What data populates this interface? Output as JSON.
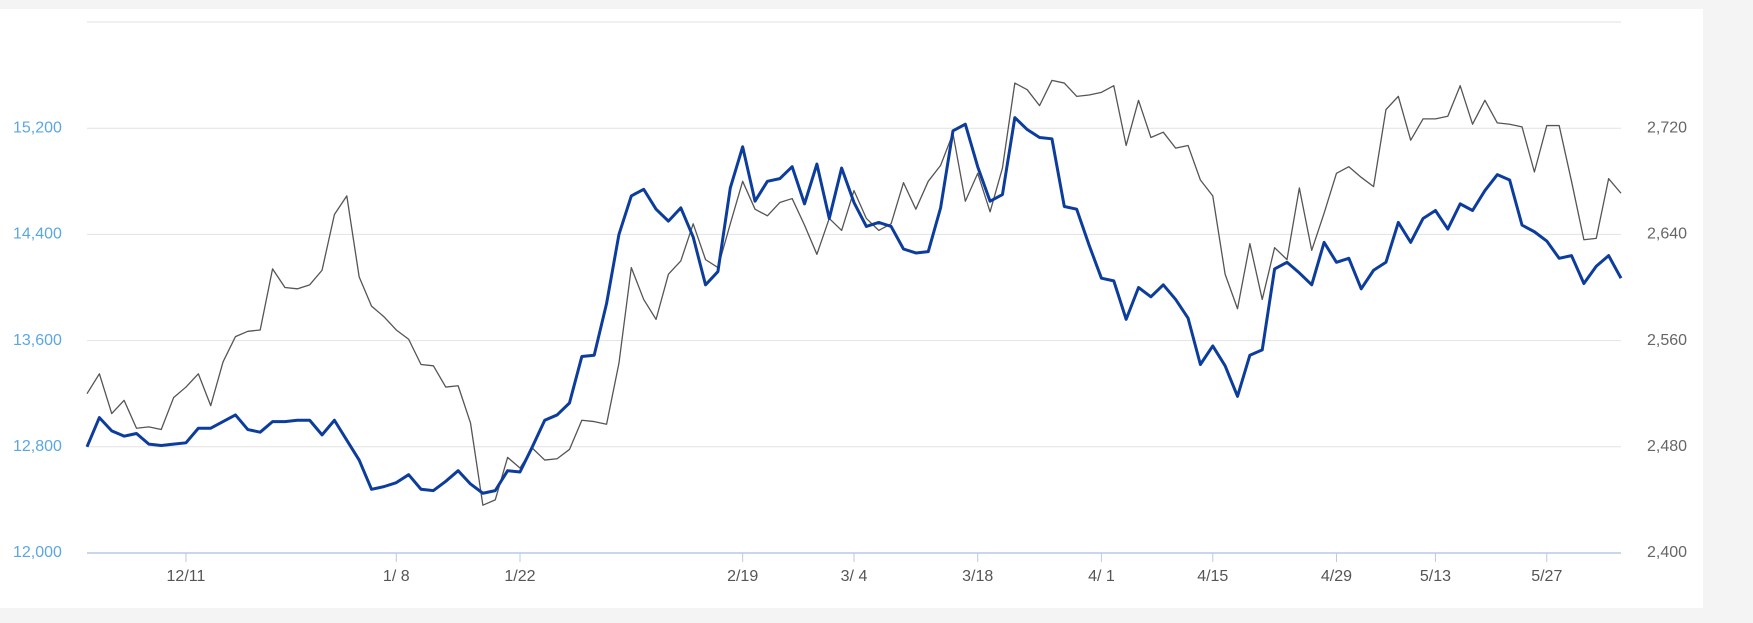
{
  "chart_data": {
    "type": "line",
    "categories": [
      null,
      null,
      null,
      null,
      null,
      null,
      null,
      null,
      "12/11",
      null,
      null,
      null,
      null,
      null,
      null,
      null,
      null,
      null,
      null,
      null,
      null,
      null,
      null,
      null,
      null,
      "1/ 8",
      null,
      null,
      null,
      null,
      null,
      null,
      null,
      null,
      null,
      "1/22",
      null,
      null,
      null,
      null,
      null,
      null,
      null,
      null,
      null,
      null,
      null,
      null,
      null,
      null,
      null,
      null,
      null,
      "2/19",
      null,
      null,
      null,
      null,
      null,
      null,
      null,
      null,
      "3/ 4",
      null,
      null,
      null,
      null,
      null,
      null,
      null,
      null,
      null,
      "3/18",
      null,
      null,
      null,
      null,
      null,
      null,
      null,
      null,
      null,
      "4/ 1",
      null,
      null,
      null,
      null,
      null,
      null,
      null,
      null,
      "4/15",
      null,
      null,
      null,
      null,
      null,
      null,
      null,
      null,
      null,
      "4/29",
      null,
      null,
      null,
      null,
      null,
      null,
      null,
      "5/13",
      null,
      null,
      null,
      null,
      null,
      null,
      null,
      null,
      "5/27",
      null,
      null,
      null,
      null,
      null,
      null
    ],
    "series": [
      {
        "color": "#0d3d9c",
        "axis": "y",
        "values": [
          12800,
          13020,
          12920,
          12880,
          12900,
          12820,
          12810,
          12820,
          12830,
          12940,
          12940,
          12990,
          13040,
          12930,
          12910,
          12990,
          12990,
          13000,
          13000,
          12890,
          13000,
          12850,
          12700,
          12480,
          12500,
          12530,
          12590,
          12480,
          12470,
          12540,
          12620,
          12520,
          12450,
          12470,
          12620,
          12610,
          12800,
          13000,
          13040,
          13130,
          13480,
          13490,
          13880,
          14400,
          14690,
          14740,
          14590,
          14500,
          14600,
          14380,
          14020,
          14120,
          14750,
          15060,
          14650,
          14800,
          14820,
          14910,
          14630,
          14930,
          14520,
          14900,
          14640,
          14460,
          14490,
          14460,
          14290,
          14260,
          14270,
          14600,
          15180,
          15230,
          14910,
          14650,
          14700,
          15280,
          15190,
          15130,
          15120,
          14610,
          14590,
          14320,
          14070,
          14050,
          13760,
          14000,
          13930,
          14020,
          13910,
          13770,
          13420,
          13560,
          13410,
          13180,
          13490,
          13530,
          14140,
          14190,
          14110,
          14020,
          14340,
          14190,
          14220,
          13990,
          14130,
          14190,
          14490,
          14340,
          14520,
          14580,
          14440,
          14630,
          14580,
          14730,
          14850,
          14810,
          14470,
          14420,
          14350,
          14220,
          14240,
          14030,
          14160,
          14240,
          14070
        ]
      },
      {
        "color": "#555555",
        "axis": "y2",
        "values": [
          2520,
          2535,
          2505,
          2515,
          2494,
          2495,
          2493,
          2517,
          2525,
          2535,
          2511,
          2544,
          2563,
          2567,
          2568,
          2614,
          2600,
          2599,
          2602,
          2613,
          2655,
          2669,
          2608,
          2586,
          2578,
          2568,
          2561,
          2542,
          2541,
          2525,
          2526,
          2498,
          2436,
          2440,
          2472,
          2464,
          2479,
          2470,
          2471,
          2478,
          2500,
          2499,
          2497,
          2543,
          2615,
          2591,
          2576,
          2610,
          2620,
          2648,
          2621,
          2615,
          2648,
          2680,
          2659,
          2654,
          2664,
          2667,
          2647,
          2625,
          2652,
          2643,
          2673,
          2652,
          2643,
          2648,
          2679,
          2659,
          2680,
          2692,
          2716,
          2665,
          2686,
          2657,
          2690,
          2754,
          2749,
          2737,
          2756,
          2754,
          2744,
          2745,
          2747,
          2752,
          2707,
          2741,
          2713,
          2717,
          2705,
          2707,
          2681,
          2669,
          2610,
          2584,
          2633,
          2591,
          2630,
          2621,
          2675,
          2628,
          2656,
          2686,
          2691,
          2683,
          2676,
          2734,
          2744,
          2711,
          2727,
          2727,
          2729,
          2752,
          2723,
          2741,
          2724,
          2723,
          2721,
          2687,
          2722,
          2722,
          2680,
          2636,
          2637,
          2682,
          2671
        ]
      }
    ],
    "ylim": [
      12000,
      16000
    ],
    "yticks": [
      {
        "value": 12000,
        "label": "12,000"
      },
      {
        "value": 12800,
        "label": "12,800"
      },
      {
        "value": 13600,
        "label": "13,600"
      },
      {
        "value": 14400,
        "label": "14,400"
      },
      {
        "value": 15200,
        "label": "15,200"
      }
    ],
    "y2lim": [
      2400,
      2800
    ],
    "y2ticks": [
      {
        "value": 2400,
        "label": "2,400"
      },
      {
        "value": 2480,
        "label": "2,480"
      },
      {
        "value": 2560,
        "label": "2,560"
      },
      {
        "value": 2640,
        "label": "2,640"
      },
      {
        "value": 2720,
        "label": "2,720"
      }
    ],
    "grid": true
  }
}
